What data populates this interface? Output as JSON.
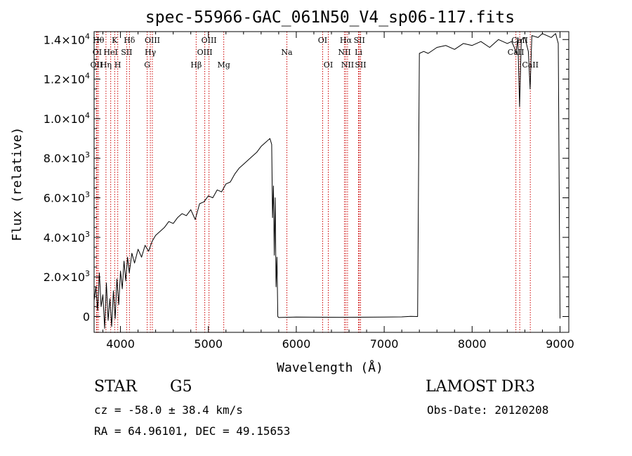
{
  "chart_data": {
    "type": "line",
    "title": "spec-55966-GAC_061N50_V4_sp06-117.fits",
    "xlabel": "Wavelength (Å)",
    "ylabel": "Flux (relative)",
    "xlim": [
      3700,
      9100
    ],
    "ylim": [
      -800,
      14400
    ],
    "x_ticks": [
      4000,
      5000,
      6000,
      7000,
      8000,
      9000
    ],
    "y_ticks": [
      {
        "value": 0,
        "mant": "0",
        "exp": ""
      },
      {
        "value": 2000,
        "mant": "2.0×10",
        "exp": "3"
      },
      {
        "value": 4000,
        "mant": "4.0×10",
        "exp": "3"
      },
      {
        "value": 6000,
        "mant": "6.0×10",
        "exp": "3"
      },
      {
        "value": 8000,
        "mant": "8.0×10",
        "exp": "3"
      },
      {
        "value": 10000,
        "mant": "1.0×10",
        "exp": "4"
      },
      {
        "value": 12000,
        "mant": "1.2×10",
        "exp": "4"
      },
      {
        "value": 14000,
        "mant": "1.4×10",
        "exp": "4"
      }
    ],
    "series": [
      {
        "name": "flux",
        "points": [
          [
            3700,
            800
          ],
          [
            3720,
            1500
          ],
          [
            3740,
            300
          ],
          [
            3760,
            2200
          ],
          [
            3780,
            500
          ],
          [
            3800,
            1100
          ],
          [
            3820,
            -600
          ],
          [
            3840,
            1700
          ],
          [
            3860,
            -200
          ],
          [
            3880,
            900
          ],
          [
            3900,
            -500
          ],
          [
            3920,
            1300
          ],
          [
            3940,
            -100
          ],
          [
            3960,
            1900
          ],
          [
            3980,
            600
          ],
          [
            4000,
            2300
          ],
          [
            4020,
            1400
          ],
          [
            4040,
            2800
          ],
          [
            4060,
            1800
          ],
          [
            4080,
            3000
          ],
          [
            4100,
            2200
          ],
          [
            4130,
            3200
          ],
          [
            4160,
            2700
          ],
          [
            4200,
            3400
          ],
          [
            4240,
            3000
          ],
          [
            4280,
            3600
          ],
          [
            4320,
            3300
          ],
          [
            4360,
            3800
          ],
          [
            4400,
            4100
          ],
          [
            4450,
            4300
          ],
          [
            4500,
            4500
          ],
          [
            4550,
            4800
          ],
          [
            4600,
            4700
          ],
          [
            4650,
            5000
          ],
          [
            4700,
            5200
          ],
          [
            4750,
            5100
          ],
          [
            4800,
            5400
          ],
          [
            4850,
            4900
          ],
          [
            4900,
            5700
          ],
          [
            4950,
            5800
          ],
          [
            5000,
            6100
          ],
          [
            5050,
            6000
          ],
          [
            5100,
            6400
          ],
          [
            5150,
            6300
          ],
          [
            5200,
            6700
          ],
          [
            5250,
            6800
          ],
          [
            5300,
            7200
          ],
          [
            5350,
            7500
          ],
          [
            5400,
            7700
          ],
          [
            5450,
            7900
          ],
          [
            5500,
            8100
          ],
          [
            5550,
            8300
          ],
          [
            5600,
            8600
          ],
          [
            5650,
            8800
          ],
          [
            5700,
            9000
          ],
          [
            5720,
            8700
          ],
          [
            5730,
            5000
          ],
          [
            5740,
            6600
          ],
          [
            5750,
            3100
          ],
          [
            5760,
            6000
          ],
          [
            5770,
            1500
          ],
          [
            5780,
            3000
          ],
          [
            5790,
            0
          ],
          [
            5800,
            -50
          ],
          [
            6000,
            -30
          ],
          [
            6500,
            -40
          ],
          [
            7000,
            -30
          ],
          [
            7200,
            -20
          ],
          [
            7300,
            10
          ],
          [
            7380,
            0
          ],
          [
            7400,
            13300
          ],
          [
            7450,
            13400
          ],
          [
            7500,
            13300
          ],
          [
            7600,
            13600
          ],
          [
            7700,
            13700
          ],
          [
            7800,
            13500
          ],
          [
            7900,
            13800
          ],
          [
            8000,
            13700
          ],
          [
            8100,
            13900
          ],
          [
            8200,
            13600
          ],
          [
            8300,
            14000
          ],
          [
            8400,
            13800
          ],
          [
            8450,
            13900
          ],
          [
            8480,
            13600
          ],
          [
            8500,
            13300
          ],
          [
            8520,
            14100
          ],
          [
            8540,
            10600
          ],
          [
            8560,
            14000
          ],
          [
            8600,
            14100
          ],
          [
            8640,
            13400
          ],
          [
            8660,
            11500
          ],
          [
            8680,
            14200
          ],
          [
            8750,
            14100
          ],
          [
            8800,
            14300
          ],
          [
            8850,
            14200
          ],
          [
            8900,
            14100
          ],
          [
            8950,
            14300
          ],
          [
            8980,
            13800
          ],
          [
            9000,
            -100
          ]
        ]
      }
    ],
    "lines": [
      {
        "w": 3727,
        "label": "OII",
        "row": 2
      },
      {
        "w": 3735,
        "label": "OI",
        "row": 1
      },
      {
        "w": 3750,
        "label": "Hθ",
        "row": 0
      },
      {
        "w": 3835,
        "label": "Hη",
        "row": 2
      },
      {
        "w": 3889,
        "label": "HeI",
        "row": 1
      },
      {
        "w": 3934,
        "label": "K",
        "row": 0
      },
      {
        "w": 3969,
        "label": "H",
        "row": 2
      },
      {
        "w": 4070,
        "label": "SII",
        "row": 1
      },
      {
        "w": 4102,
        "label": "Hδ",
        "row": 0
      },
      {
        "w": 4304,
        "label": "G",
        "row": 2
      },
      {
        "w": 4340,
        "label": "Hγ",
        "row": 1
      },
      {
        "w": 4363,
        "label": "OIII",
        "row": 0
      },
      {
        "w": 4861,
        "label": "Hβ",
        "row": 2
      },
      {
        "w": 4959,
        "label": "OIII",
        "row": 1
      },
      {
        "w": 5007,
        "label": "OIII",
        "row": 0
      },
      {
        "w": 5175,
        "label": "Mg",
        "row": 2
      },
      {
        "w": 5893,
        "label": "Na",
        "row": 1
      },
      {
        "w": 6300,
        "label": "OI",
        "row": 0
      },
      {
        "w": 6364,
        "label": "OI",
        "row": 2
      },
      {
        "w": 6548,
        "label": "NII",
        "row": 1
      },
      {
        "w": 6563,
        "label": "Hα",
        "row": 0
      },
      {
        "w": 6583,
        "label": "NII",
        "row": 2
      },
      {
        "w": 6708,
        "label": "Li",
        "row": 1
      },
      {
        "w": 6717,
        "label": "SII",
        "row": 0
      },
      {
        "w": 6731,
        "label": "SII",
        "row": 2
      },
      {
        "w": 8498,
        "label": "CaII",
        "row": 1
      },
      {
        "w": 8542,
        "label": "CaII",
        "row": 0
      },
      {
        "w": 8662,
        "label": "CaII",
        "row": 2
      }
    ]
  },
  "info": {
    "class": "STAR",
    "subclass": "G5",
    "survey": "LAMOST DR3",
    "cz": "cz = -58.0 ± 38.4 km/s",
    "obs_date": "Obs-Date: 20120208",
    "radec": "RA =  64.96101, DEC =  49.15653"
  },
  "colors": {
    "lines": "#cc0000",
    "ink": "#000000"
  }
}
